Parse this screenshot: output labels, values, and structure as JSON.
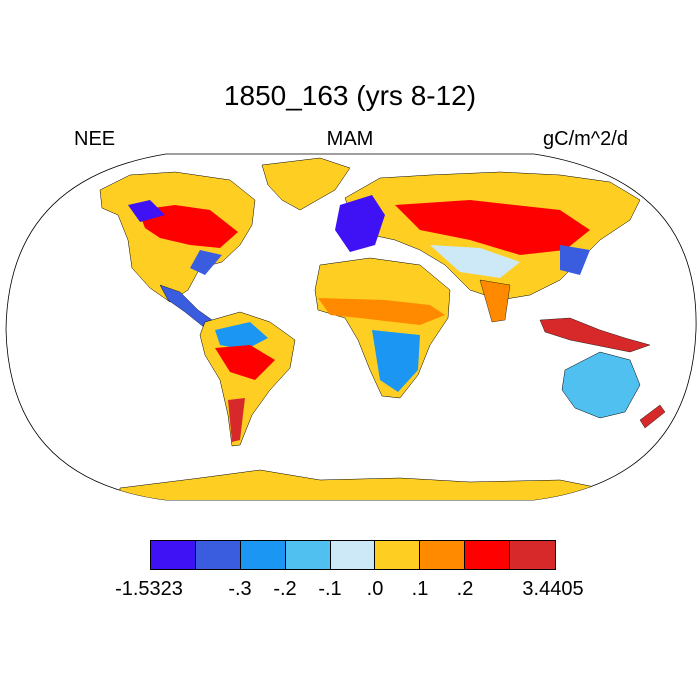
{
  "title": "1850_163 (yrs 8-12)",
  "subtitle_left": "NEE",
  "subtitle_center": "MAM",
  "subtitle_right": "gC/m^2/d",
  "colors": {
    "ocean": "#ffffff",
    "outline": "#000000"
  },
  "colorbar": {
    "colors": [
      "#3f12f5",
      "#3a5de0",
      "#1b96f3",
      "#4fc0f0",
      "#cde9f8",
      "#fecf22",
      "#ff8a00",
      "#fe0000",
      "#d72929"
    ],
    "labels": [
      "-1.5323",
      "-.3",
      "-.2",
      "-.1",
      ".0",
      ".1",
      ".2",
      "3.4405"
    ]
  }
}
